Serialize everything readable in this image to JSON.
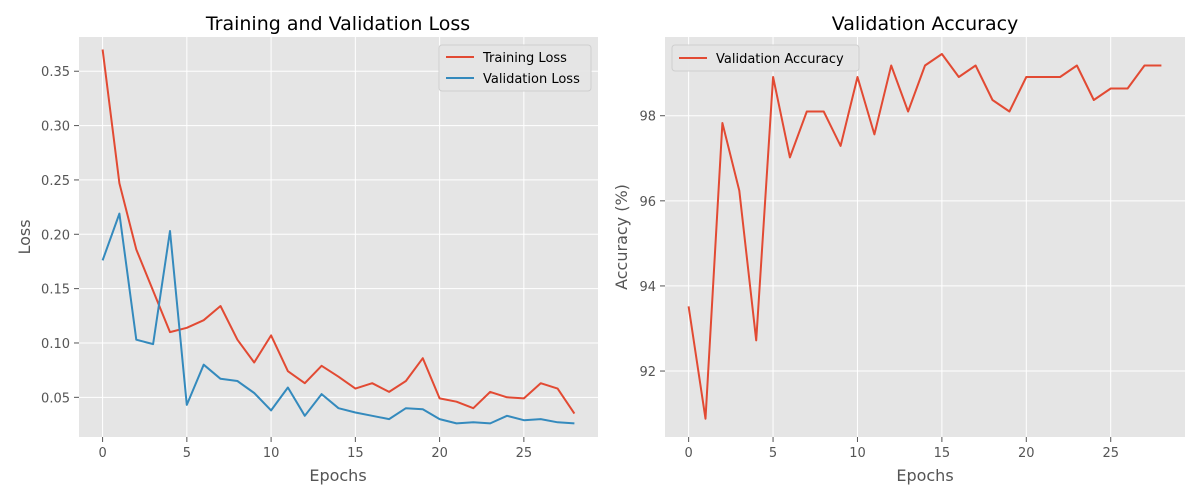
{
  "chart_data": [
    {
      "type": "line",
      "title": "Training and Validation Loss",
      "xlabel": "Epochs",
      "ylabel": "Loss",
      "x": [
        0,
        1,
        2,
        3,
        4,
        5,
        6,
        7,
        8,
        9,
        10,
        11,
        12,
        13,
        14,
        15,
        16,
        17,
        18,
        19,
        20,
        21,
        22,
        23,
        24,
        25,
        26,
        27,
        28
      ],
      "xlim": [
        -1.4,
        29.4
      ],
      "ylim": [
        0.0135,
        0.3815
      ],
      "xticks": [
        0,
        5,
        10,
        15,
        20,
        25
      ],
      "yticks": [
        0.05,
        0.1,
        0.15,
        0.2,
        0.25,
        0.3,
        0.35
      ],
      "ytick_labels": [
        "0.05",
        "0.10",
        "0.15",
        "0.20",
        "0.25",
        "0.30",
        "0.35"
      ],
      "grid": true,
      "legend_position": "top-right",
      "series": [
        {
          "name": "Training Loss",
          "color": "#E24A33",
          "values": [
            0.37,
            0.247,
            0.186,
            0.148,
            0.11,
            0.114,
            0.121,
            0.134,
            0.103,
            0.082,
            0.107,
            0.074,
            0.063,
            0.079,
            0.069,
            0.058,
            0.063,
            0.055,
            0.065,
            0.086,
            0.049,
            0.046,
            0.04,
            0.055,
            0.05,
            0.049,
            0.063,
            0.058,
            0.035
          ]
        },
        {
          "name": "Validation Loss",
          "color": "#348ABD",
          "values": [
            0.176,
            0.219,
            0.103,
            0.099,
            0.203,
            0.043,
            0.08,
            0.067,
            0.065,
            0.054,
            0.038,
            0.059,
            0.033,
            0.053,
            0.04,
            0.036,
            0.033,
            0.03,
            0.04,
            0.039,
            0.03,
            0.026,
            0.027,
            0.026,
            0.033,
            0.029,
            0.03,
            0.027,
            0.026
          ]
        }
      ]
    },
    {
      "type": "line",
      "title": "Validation Accuracy",
      "xlabel": "Epochs",
      "ylabel": "Accuracy (%)",
      "x": [
        0,
        1,
        2,
        3,
        4,
        5,
        6,
        7,
        8,
        9,
        10,
        11,
        12,
        13,
        14,
        15,
        16,
        17,
        18,
        19,
        20,
        21,
        22,
        23,
        24,
        25,
        26,
        27,
        28
      ],
      "xlim": [
        -1.4,
        29.4
      ],
      "ylim": [
        90.45,
        99.85
      ],
      "xticks": [
        0,
        5,
        10,
        15,
        20,
        25
      ],
      "yticks": [
        92,
        94,
        96,
        98
      ],
      "ytick_labels": [
        "92",
        "94",
        "96",
        "98"
      ],
      "grid": true,
      "legend_position": "top-left",
      "series": [
        {
          "name": "Validation Accuracy",
          "color": "#E24A33",
          "values": [
            93.52,
            90.88,
            97.83,
            96.24,
            92.72,
            98.91,
            97.02,
            98.1,
            98.1,
            97.29,
            98.91,
            97.56,
            99.18,
            98.1,
            99.18,
            99.45,
            98.91,
            99.18,
            98.37,
            98.1,
            98.91,
            98.91,
            98.91,
            99.18,
            98.37,
            98.64,
            98.64,
            99.18,
            99.18
          ]
        }
      ]
    }
  ]
}
